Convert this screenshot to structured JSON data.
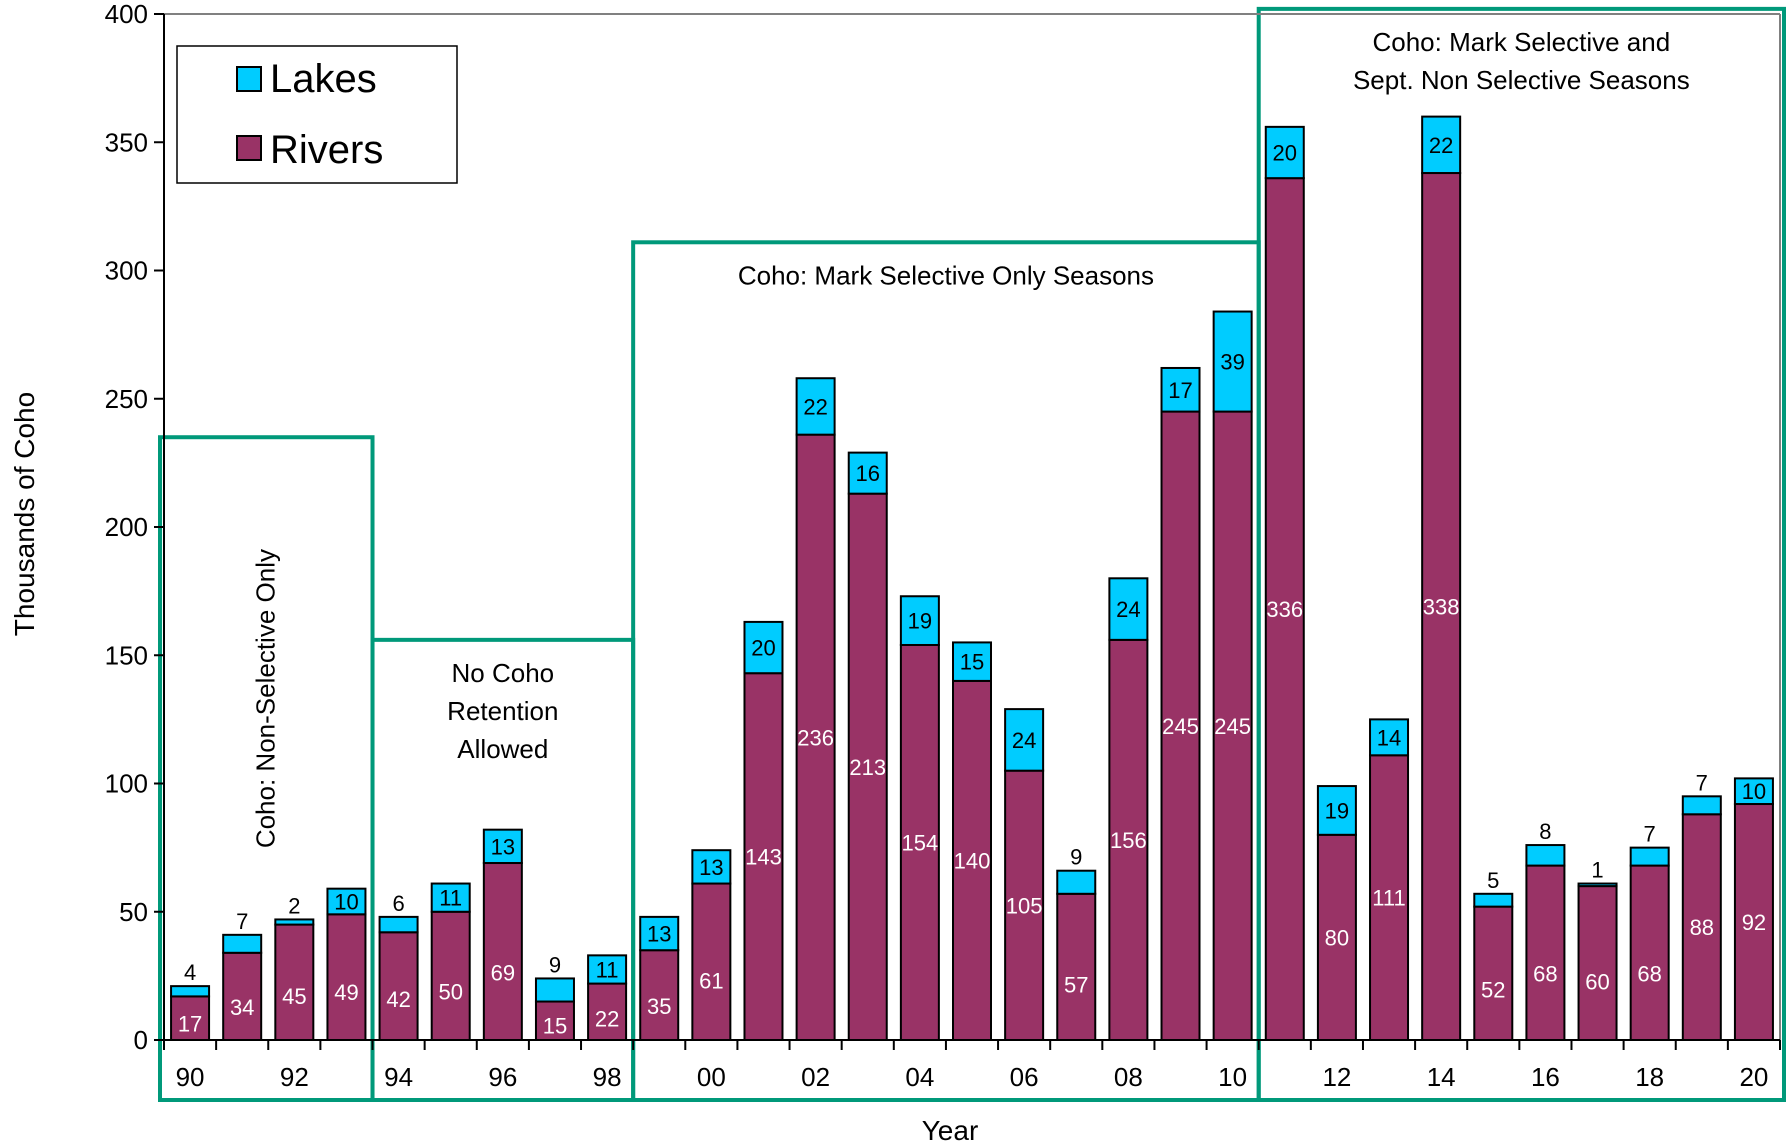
{
  "chart_data": {
    "type": "bar",
    "stacked": true,
    "categories": [
      "1990",
      "1991",
      "1992",
      "1993",
      "1994",
      "1995",
      "1996",
      "1997",
      "1998",
      "1999",
      "2000",
      "2001",
      "2002",
      "2003",
      "2004",
      "2005",
      "2006",
      "2007",
      "2008",
      "2009",
      "2010",
      "2011",
      "2012",
      "2013",
      "2014",
      "2015",
      "2016",
      "2017",
      "2018",
      "2019",
      "2020"
    ],
    "tick_labels": [
      "90",
      "",
      "92",
      "",
      "94",
      "",
      "96",
      "",
      "98",
      "",
      "00",
      "",
      "02",
      "",
      "04",
      "",
      "06",
      "",
      "08",
      "",
      "10",
      "",
      "12",
      "",
      "14",
      "",
      "16",
      "",
      "18",
      "",
      "20"
    ],
    "series": [
      {
        "name": "Rivers",
        "color": "#993366",
        "values": [
          17,
          34,
          45,
          49,
          42,
          50,
          69,
          15,
          22,
          35,
          61,
          143,
          236,
          213,
          154,
          140,
          105,
          57,
          156,
          245,
          245,
          336,
          80,
          111,
          338,
          52,
          68,
          60,
          68,
          88,
          92
        ]
      },
      {
        "name": "Lakes",
        "color": "#00CCFF",
        "values": [
          4,
          7,
          2,
          10,
          6,
          11,
          13,
          9,
          11,
          13,
          13,
          20,
          22,
          16,
          19,
          15,
          24,
          9,
          24,
          17,
          39,
          20,
          19,
          14,
          22,
          5,
          8,
          1,
          7,
          7,
          10
        ]
      }
    ],
    "xlabel": "Year",
    "ylabel": "Thousands of Coho",
    "ylim": [
      0,
      400
    ],
    "yticks": [
      0,
      50,
      100,
      150,
      200,
      250,
      300,
      350,
      400
    ],
    "legend": {
      "placement": "top-left",
      "entries": [
        "Lakes",
        "Rivers"
      ]
    },
    "regions": [
      {
        "label_lines": [
          "Coho: Non-Selective Only"
        ],
        "orientation": "vertical",
        "start": "1990",
        "end": "1993",
        "height": 235
      },
      {
        "label_lines": [
          "No Coho",
          "Retention",
          "Allowed"
        ],
        "orientation": "horizontal",
        "start": "1994",
        "end": "1998",
        "height": 156
      },
      {
        "label_lines": [
          "Coho: Mark Selective Only Seasons"
        ],
        "orientation": "horizontal",
        "start": "1999",
        "end": "2010",
        "height": 311
      },
      {
        "label_lines": [
          "Coho: Mark Selective and",
          "Sept. Non Selective Seasons"
        ],
        "orientation": "horizontal",
        "start": "2011",
        "end": "2020",
        "height": 402
      }
    ],
    "colors": {
      "rivers": "#993366",
      "lakes": "#00CCFF",
      "region_border": "#00997A",
      "axis": "#808080"
    }
  }
}
